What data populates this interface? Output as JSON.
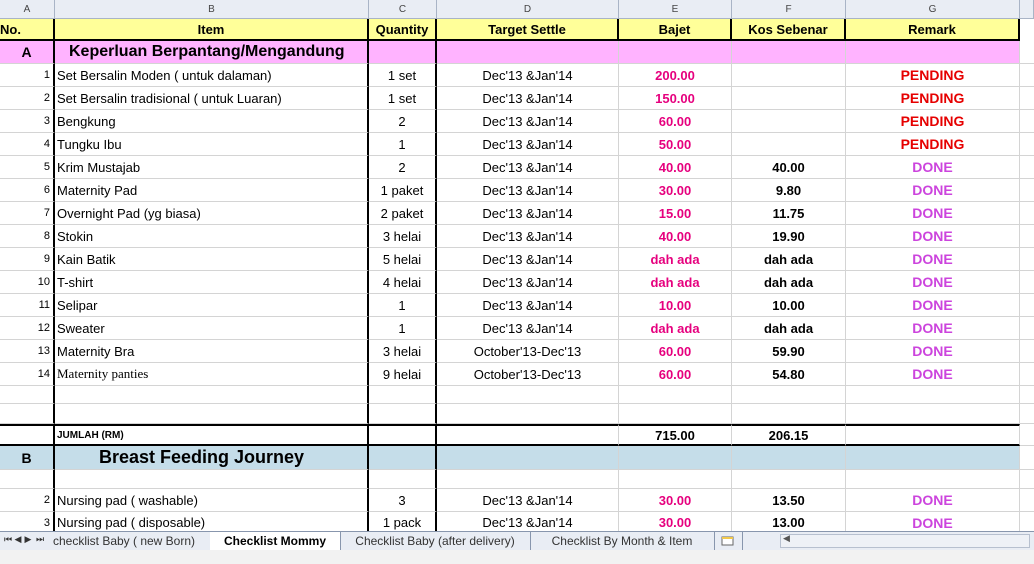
{
  "columns": [
    "A",
    "B",
    "C",
    "D",
    "E",
    "F",
    "G"
  ],
  "header": {
    "no": "No.",
    "item": "Item",
    "quantity": "Quantity",
    "target": "Target Settle",
    "bajet": "Bajet",
    "kos": "Kos Sebenar",
    "remark": "Remark"
  },
  "sectionA": {
    "letter": "A",
    "title": "Keperluan Berpantang/Mengandung"
  },
  "rowsA": [
    {
      "no": "1",
      "item": "Set Bersalin Moden ( untuk dalaman)",
      "qty": "1 set",
      "target": "Dec'13 &Jan'14",
      "bajet": "200.00",
      "kos": "",
      "remark": "PENDING"
    },
    {
      "no": "2",
      "item": "Set Bersalin tradisional ( untuk Luaran)",
      "qty": "1 set",
      "target": "Dec'13 &Jan'14",
      "bajet": "150.00",
      "kos": "",
      "remark": "PENDING"
    },
    {
      "no": "3",
      "item": "Bengkung",
      "qty": "2",
      "target": "Dec'13 &Jan'14",
      "bajet": "60.00",
      "kos": "",
      "remark": "PENDING"
    },
    {
      "no": "4",
      "item": "Tungku Ibu",
      "qty": "1",
      "target": "Dec'13 &Jan'14",
      "bajet": "50.00",
      "kos": "",
      "remark": "PENDING"
    },
    {
      "no": "5",
      "item": "Krim Mustajab",
      "qty": "2",
      "target": "Dec'13 &Jan'14",
      "bajet": "40.00",
      "kos": "40.00",
      "remark": "DONE"
    },
    {
      "no": "6",
      "item": "Maternity Pad",
      "qty": "1 paket",
      "target": "Dec'13 &Jan'14",
      "bajet": "30.00",
      "kos": "9.80",
      "remark": "DONE"
    },
    {
      "no": "7",
      "item": "Overnight Pad (yg biasa)",
      "qty": "2 paket",
      "target": "Dec'13 &Jan'14",
      "bajet": "15.00",
      "kos": "11.75",
      "remark": "DONE"
    },
    {
      "no": "8",
      "item": "Stokin",
      "qty": "3 helai",
      "target": "Dec'13 &Jan'14",
      "bajet": "40.00",
      "kos": "19.90",
      "remark": "DONE"
    },
    {
      "no": "9",
      "item": "Kain Batik",
      "qty": "5 helai",
      "target": "Dec'13 &Jan'14",
      "bajet": "dah ada",
      "kos": "dah ada",
      "remark": "DONE"
    },
    {
      "no": "10",
      "item": "T-shirt",
      "qty": "4 helai",
      "target": "Dec'13 &Jan'14",
      "bajet": "dah ada",
      "kos": "dah ada",
      "remark": "DONE"
    },
    {
      "no": "11",
      "item": " Selipar",
      "qty": "1",
      "target": "Dec'13 &Jan'14",
      "bajet": "10.00",
      "kos": "10.00",
      "remark": "DONE"
    },
    {
      "no": "12",
      "item": "Sweater",
      "qty": "1",
      "target": "Dec'13 &Jan'14",
      "bajet": "dah ada",
      "kos": "dah ada",
      "remark": "DONE"
    },
    {
      "no": "13",
      "item": "Maternity Bra",
      "qty": "3 helai",
      "target": "October'13-Dec'13",
      "bajet": "60.00",
      "kos": "59.90",
      "remark": "DONE"
    },
    {
      "no": "14",
      "item": "Maternity panties",
      "qty": "9 helai",
      "target": "October'13-Dec'13",
      "bajet": "60.00",
      "kos": "54.80",
      "remark": "DONE"
    }
  ],
  "total": {
    "label": "JUMLAH (RM)",
    "bajet": "715.00",
    "kos": "206.15"
  },
  "sectionB": {
    "letter": "B",
    "title": "Breast Feeding Journey"
  },
  "rowsB": [
    {
      "no": "2",
      "item": "Nursing pad ( washable)",
      "qty": "3",
      "target": "Dec'13 &Jan'14",
      "bajet": "30.00",
      "kos": "13.50",
      "remark": "DONE"
    },
    {
      "no": "3",
      "item": "Nursing pad ( disposable)",
      "qty": "1 pack",
      "target": "Dec'13 &Jan'14",
      "bajet": "30.00",
      "kos": "13.00",
      "remark": "DONE"
    }
  ],
  "tabs": [
    "checklist Baby ( new Born)",
    "Checklist Mommy",
    "Checklist Baby (after delivery)",
    "Checklist By Month & Item"
  ],
  "nav": {
    "first": "⏮",
    "prev": "◀",
    "next": "▶",
    "last": "⏭"
  },
  "colors": {
    "header": "#ffff99",
    "sectionA": "#ffb3ff",
    "sectionB": "#c5dde9",
    "pending": "#e60000",
    "done": "#cc44dd",
    "bajet": "#e6007e"
  }
}
